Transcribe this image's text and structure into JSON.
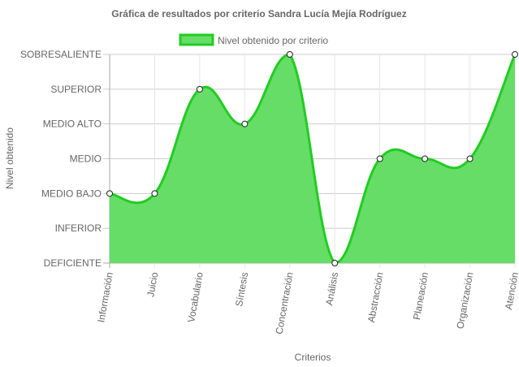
{
  "chart_data": {
    "type": "area",
    "title": "Gráfica de resultados por criterio Sandra Lucía Mejía Rodríguez",
    "xlabel": "Criterios",
    "ylabel": "Nivel obtenido",
    "categories": [
      "Información",
      "Juicio",
      "Vocabulario",
      "Síntesis",
      "Concentración",
      "Análisis",
      "Abstracción",
      "Planeación",
      "Organización",
      "Atención"
    ],
    "y_levels": [
      "DEFICIENTE",
      "INFERIOR",
      "MEDIO BAJO",
      "MEDIO",
      "MEDIO ALTO",
      "SUPERIOR",
      "SOBRESALIENTE"
    ],
    "series": [
      {
        "name": "Nivel obtenido por criterio",
        "values": [
          2,
          2,
          5,
          4,
          6,
          0,
          3,
          3,
          3,
          6
        ],
        "fill_color": "#66dd66",
        "line_color": "#22cc22"
      }
    ],
    "ylim": [
      0,
      6
    ],
    "grid": true,
    "legend_position": "top"
  }
}
